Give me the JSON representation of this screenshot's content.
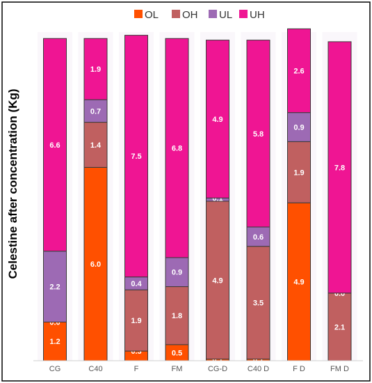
{
  "chart_data": {
    "type": "bar",
    "stacked": true,
    "title": "",
    "xlabel": "",
    "ylabel": "Celestine after concentration (Kg)",
    "ylim": [
      0,
      10.2
    ],
    "grid": false,
    "legend_position": "top",
    "categories": [
      "CG",
      "C40",
      "F",
      "FM",
      "CG-D",
      "C40  D",
      "F  D",
      "FM  D"
    ],
    "series": [
      {
        "name": "OL",
        "color": "#ff5000",
        "values": [
          1.2,
          6.0,
          0.3,
          0.5,
          0.05,
          0.05,
          4.9,
          0.0
        ],
        "labels": [
          "1.2",
          "6.0",
          "0.3",
          "0.5",
          "0.1",
          "0.1",
          "4.9",
          "0.0"
        ]
      },
      {
        "name": "OH",
        "color": "#c06060",
        "values": [
          0.0,
          1.4,
          1.9,
          1.8,
          4.9,
          3.5,
          1.9,
          2.1
        ],
        "labels": [
          "0.0",
          "1.4",
          "1.9",
          "1.8",
          "4.9",
          "3.5",
          "1.9",
          "2.1"
        ]
      },
      {
        "name": "UL",
        "color": "#9d6ab4",
        "values": [
          2.2,
          0.7,
          0.4,
          0.9,
          0.1,
          0.6,
          0.9,
          0.0
        ],
        "labels": [
          "2.2",
          "0.7",
          "0.4",
          "0.9",
          "0.1",
          "0.6",
          "0.9",
          "0.0"
        ]
      },
      {
        "name": "UH",
        "color": "#ef1593",
        "values": [
          6.6,
          1.9,
          7.5,
          6.8,
          4.9,
          5.8,
          2.6,
          7.8
        ],
        "labels": [
          "6.6",
          "1.9",
          "7.5",
          "6.8",
          "4.9",
          "5.8",
          "2.6",
          "7.8"
        ]
      }
    ]
  }
}
